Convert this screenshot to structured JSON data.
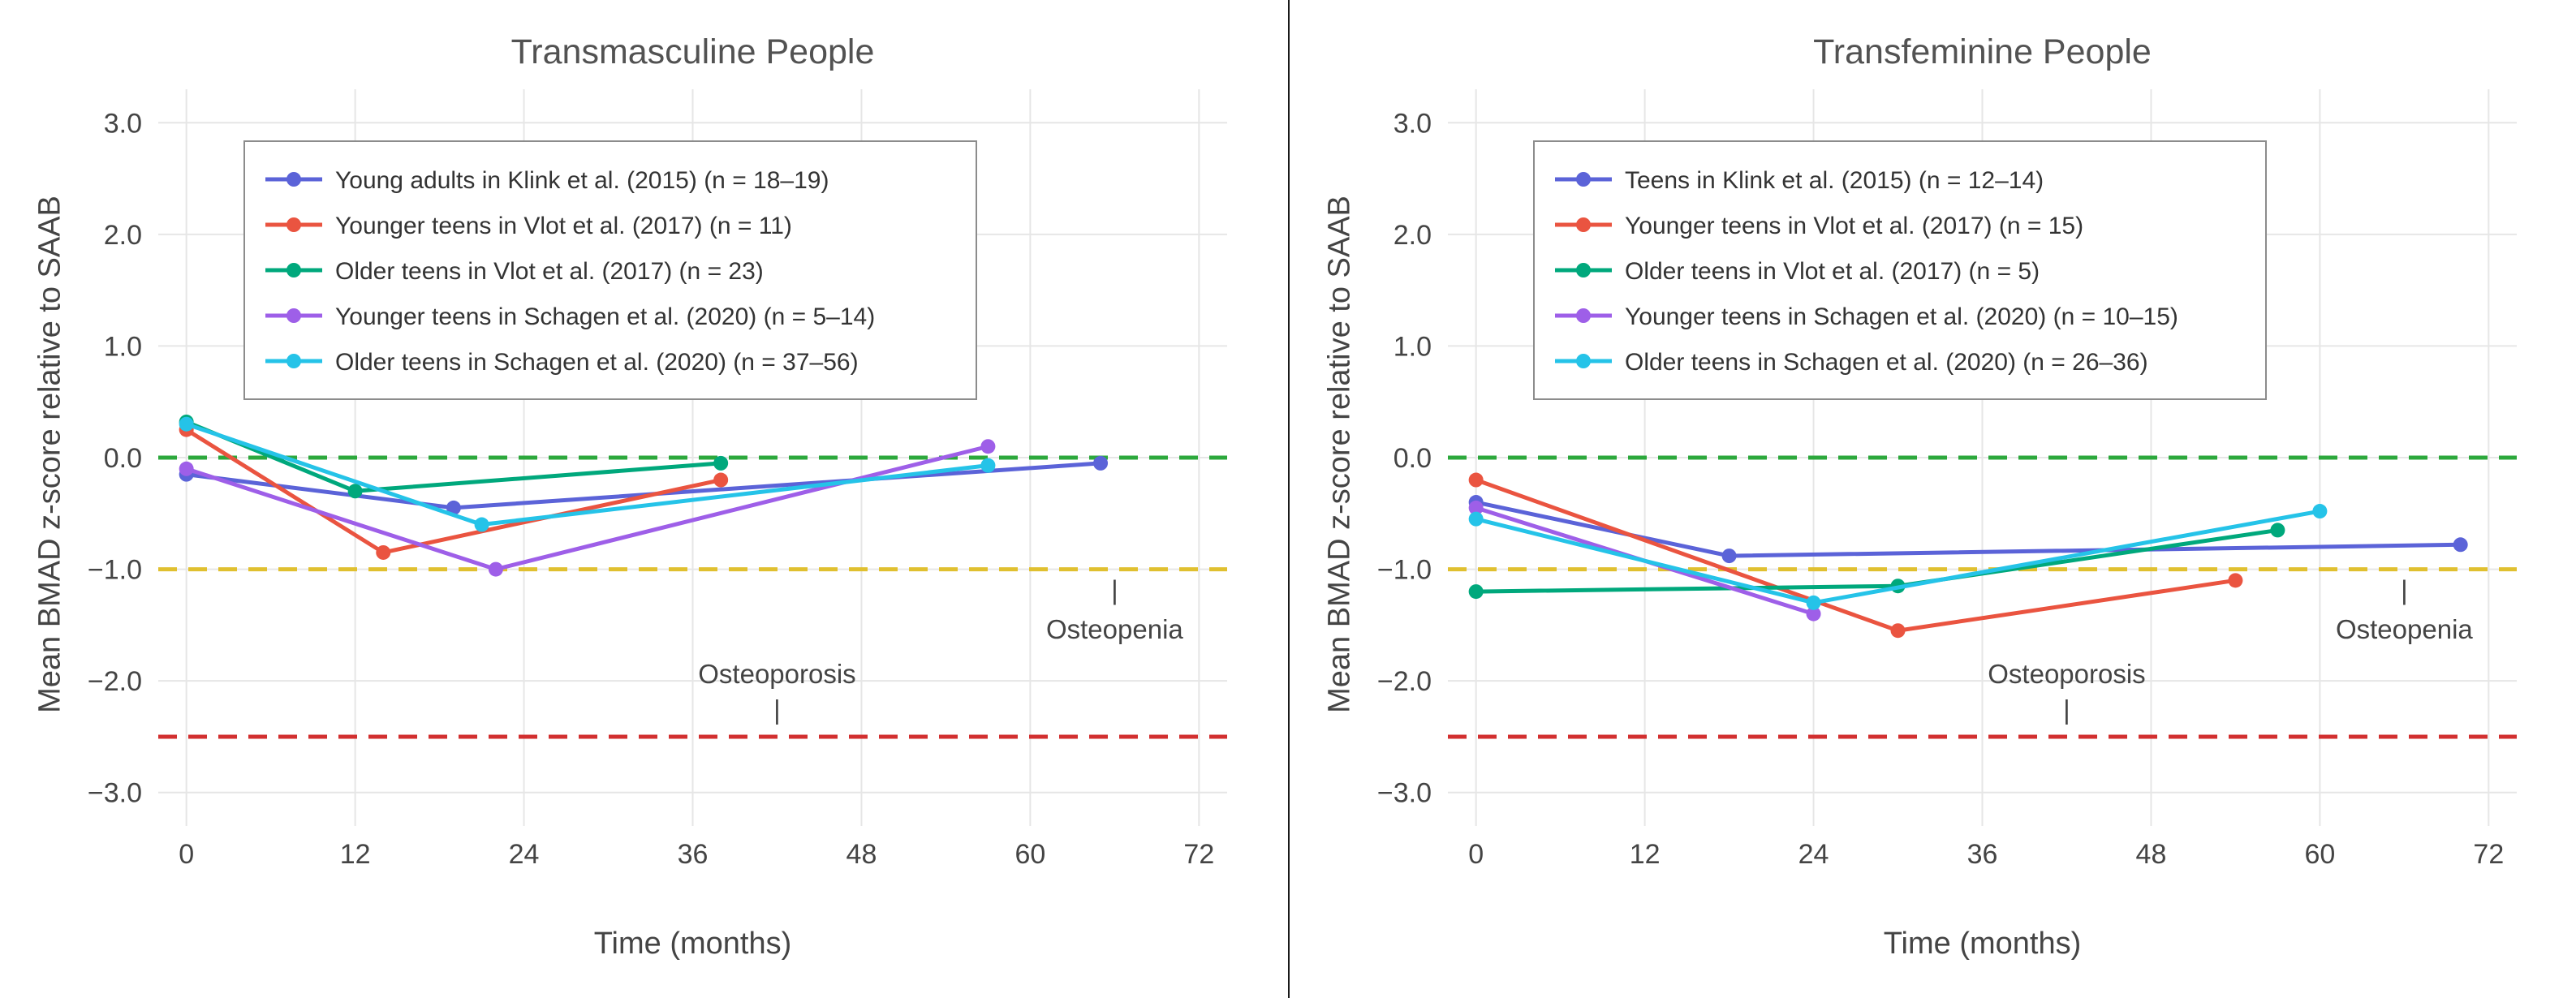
{
  "page": {
    "background": "#ffffff",
    "divider_color": "#1a1a1a",
    "text_color": "#444444",
    "grid_color": "#e6e6e6"
  },
  "chart_data": [
    {
      "type": "line",
      "title": "Transmasculine People",
      "xlabel": "Time (months)",
      "ylabel": "Mean BMAD z-score relative to SAAB",
      "xlim": [
        -2,
        74
      ],
      "ylim": [
        -3.3,
        3.3
      ],
      "grid": true,
      "legend_position": "top-left",
      "xticks": {
        "values": [
          0,
          12,
          24,
          36,
          48,
          60,
          72
        ],
        "labels": [
          "0",
          "12",
          "24",
          "36",
          "48",
          "60",
          "72"
        ]
      },
      "yticks": {
        "values": [
          3,
          2,
          1,
          0,
          -1,
          -2,
          -3
        ],
        "labels": [
          "3.0",
          "2.0",
          "1.0",
          "0.0",
          "−1.0",
          "−2.0",
          "−3.0"
        ]
      },
      "reference_lines": [
        {
          "name": "normal-zero-line",
          "y": 0.0,
          "color": "#2ca83c",
          "style": "dashed"
        },
        {
          "name": "osteopenia-line",
          "y": -1.0,
          "color": "#e0c030",
          "style": "dashed"
        },
        {
          "name": "osteoporosis-line",
          "y": -2.5,
          "color": "#d22f2f",
          "style": "dashed"
        }
      ],
      "annotations": [
        {
          "text": "Osteoporosis",
          "x": 42,
          "y": -2.02
        },
        {
          "text": "|",
          "x": 42,
          "y": -2.34
        },
        {
          "text": "Osteopenia",
          "x": 66,
          "y": -1.62
        },
        {
          "text": "|",
          "x": 66,
          "y": -1.27
        }
      ],
      "series": [
        {
          "name": "Young adults in Klink et al. (2015) (n = 18–19)",
          "color": "#5b63d8",
          "x": [
            0,
            19,
            65
          ],
          "y": [
            -0.15,
            -0.45,
            -0.05
          ]
        },
        {
          "name": "Younger teens in Vlot et al. (2017) (n = 11)",
          "color": "#ea5440",
          "x": [
            0,
            14,
            38
          ],
          "y": [
            0.25,
            -0.85,
            -0.2
          ]
        },
        {
          "name": "Older teens in Vlot et al. (2017) (n = 23)",
          "color": "#00a87c",
          "x": [
            0,
            12,
            38
          ],
          "y": [
            0.32,
            -0.3,
            -0.05
          ]
        },
        {
          "name": "Younger teens in Schagen et al. (2020) (n = 5–14)",
          "color": "#9e5fe8",
          "x": [
            0,
            22,
            57
          ],
          "y": [
            -0.1,
            -1.0,
            0.1
          ]
        },
        {
          "name": "Older teens in Schagen et al. (2020) (n = 37–56)",
          "color": "#25c3e8",
          "x": [
            0,
            21,
            57
          ],
          "y": [
            0.3,
            -0.6,
            -0.07
          ]
        }
      ]
    },
    {
      "type": "line",
      "title": "Transfeminine People",
      "xlabel": "Time (months)",
      "ylabel": "Mean BMAD z-score relative to SAAB",
      "xlim": [
        -2,
        74
      ],
      "ylim": [
        -3.3,
        3.3
      ],
      "grid": true,
      "legend_position": "top-left",
      "xticks": {
        "values": [
          0,
          12,
          24,
          36,
          48,
          60,
          72
        ],
        "labels": [
          "0",
          "12",
          "24",
          "36",
          "48",
          "60",
          "72"
        ]
      },
      "yticks": {
        "values": [
          3,
          2,
          1,
          0,
          -1,
          -2,
          -3
        ],
        "labels": [
          "3.0",
          "2.0",
          "1.0",
          "0.0",
          "−1.0",
          "−2.0",
          "−3.0"
        ]
      },
      "reference_lines": [
        {
          "name": "normal-zero-line",
          "y": 0.0,
          "color": "#2ca83c",
          "style": "dashed"
        },
        {
          "name": "osteopenia-line",
          "y": -1.0,
          "color": "#e0c030",
          "style": "dashed"
        },
        {
          "name": "osteoporosis-line",
          "y": -2.5,
          "color": "#d22f2f",
          "style": "dashed"
        }
      ],
      "annotations": [
        {
          "text": "Osteoporosis",
          "x": 42,
          "y": -2.02
        },
        {
          "text": "|",
          "x": 42,
          "y": -2.34
        },
        {
          "text": "Osteopenia",
          "x": 66,
          "y": -1.62
        },
        {
          "text": "|",
          "x": 66,
          "y": -1.27
        }
      ],
      "series": [
        {
          "name": "Teens in Klink et al. (2015) (n = 12–14)",
          "color": "#5b63d8",
          "x": [
            0,
            18,
            70
          ],
          "y": [
            -0.4,
            -0.88,
            -0.78
          ]
        },
        {
          "name": "Younger teens in Vlot et al. (2017) (n = 15)",
          "color": "#ea5440",
          "x": [
            0,
            30,
            54
          ],
          "y": [
            -0.2,
            -1.55,
            -1.1
          ]
        },
        {
          "name": "Older teens in Vlot et al. (2017) (n = 5)",
          "color": "#00a87c",
          "x": [
            0,
            30,
            57
          ],
          "y": [
            -1.2,
            -1.15,
            -0.65
          ]
        },
        {
          "name": "Younger teens in Schagen et al. (2020) (n = 10–15)",
          "color": "#9e5fe8",
          "x": [
            0,
            24
          ],
          "y": [
            -0.45,
            -1.4
          ]
        },
        {
          "name": "Older teens in Schagen et al. (2020) (n = 26–36)",
          "color": "#25c3e8",
          "x": [
            0,
            24,
            60
          ],
          "y": [
            -0.55,
            -1.3,
            -0.48
          ]
        }
      ]
    }
  ]
}
